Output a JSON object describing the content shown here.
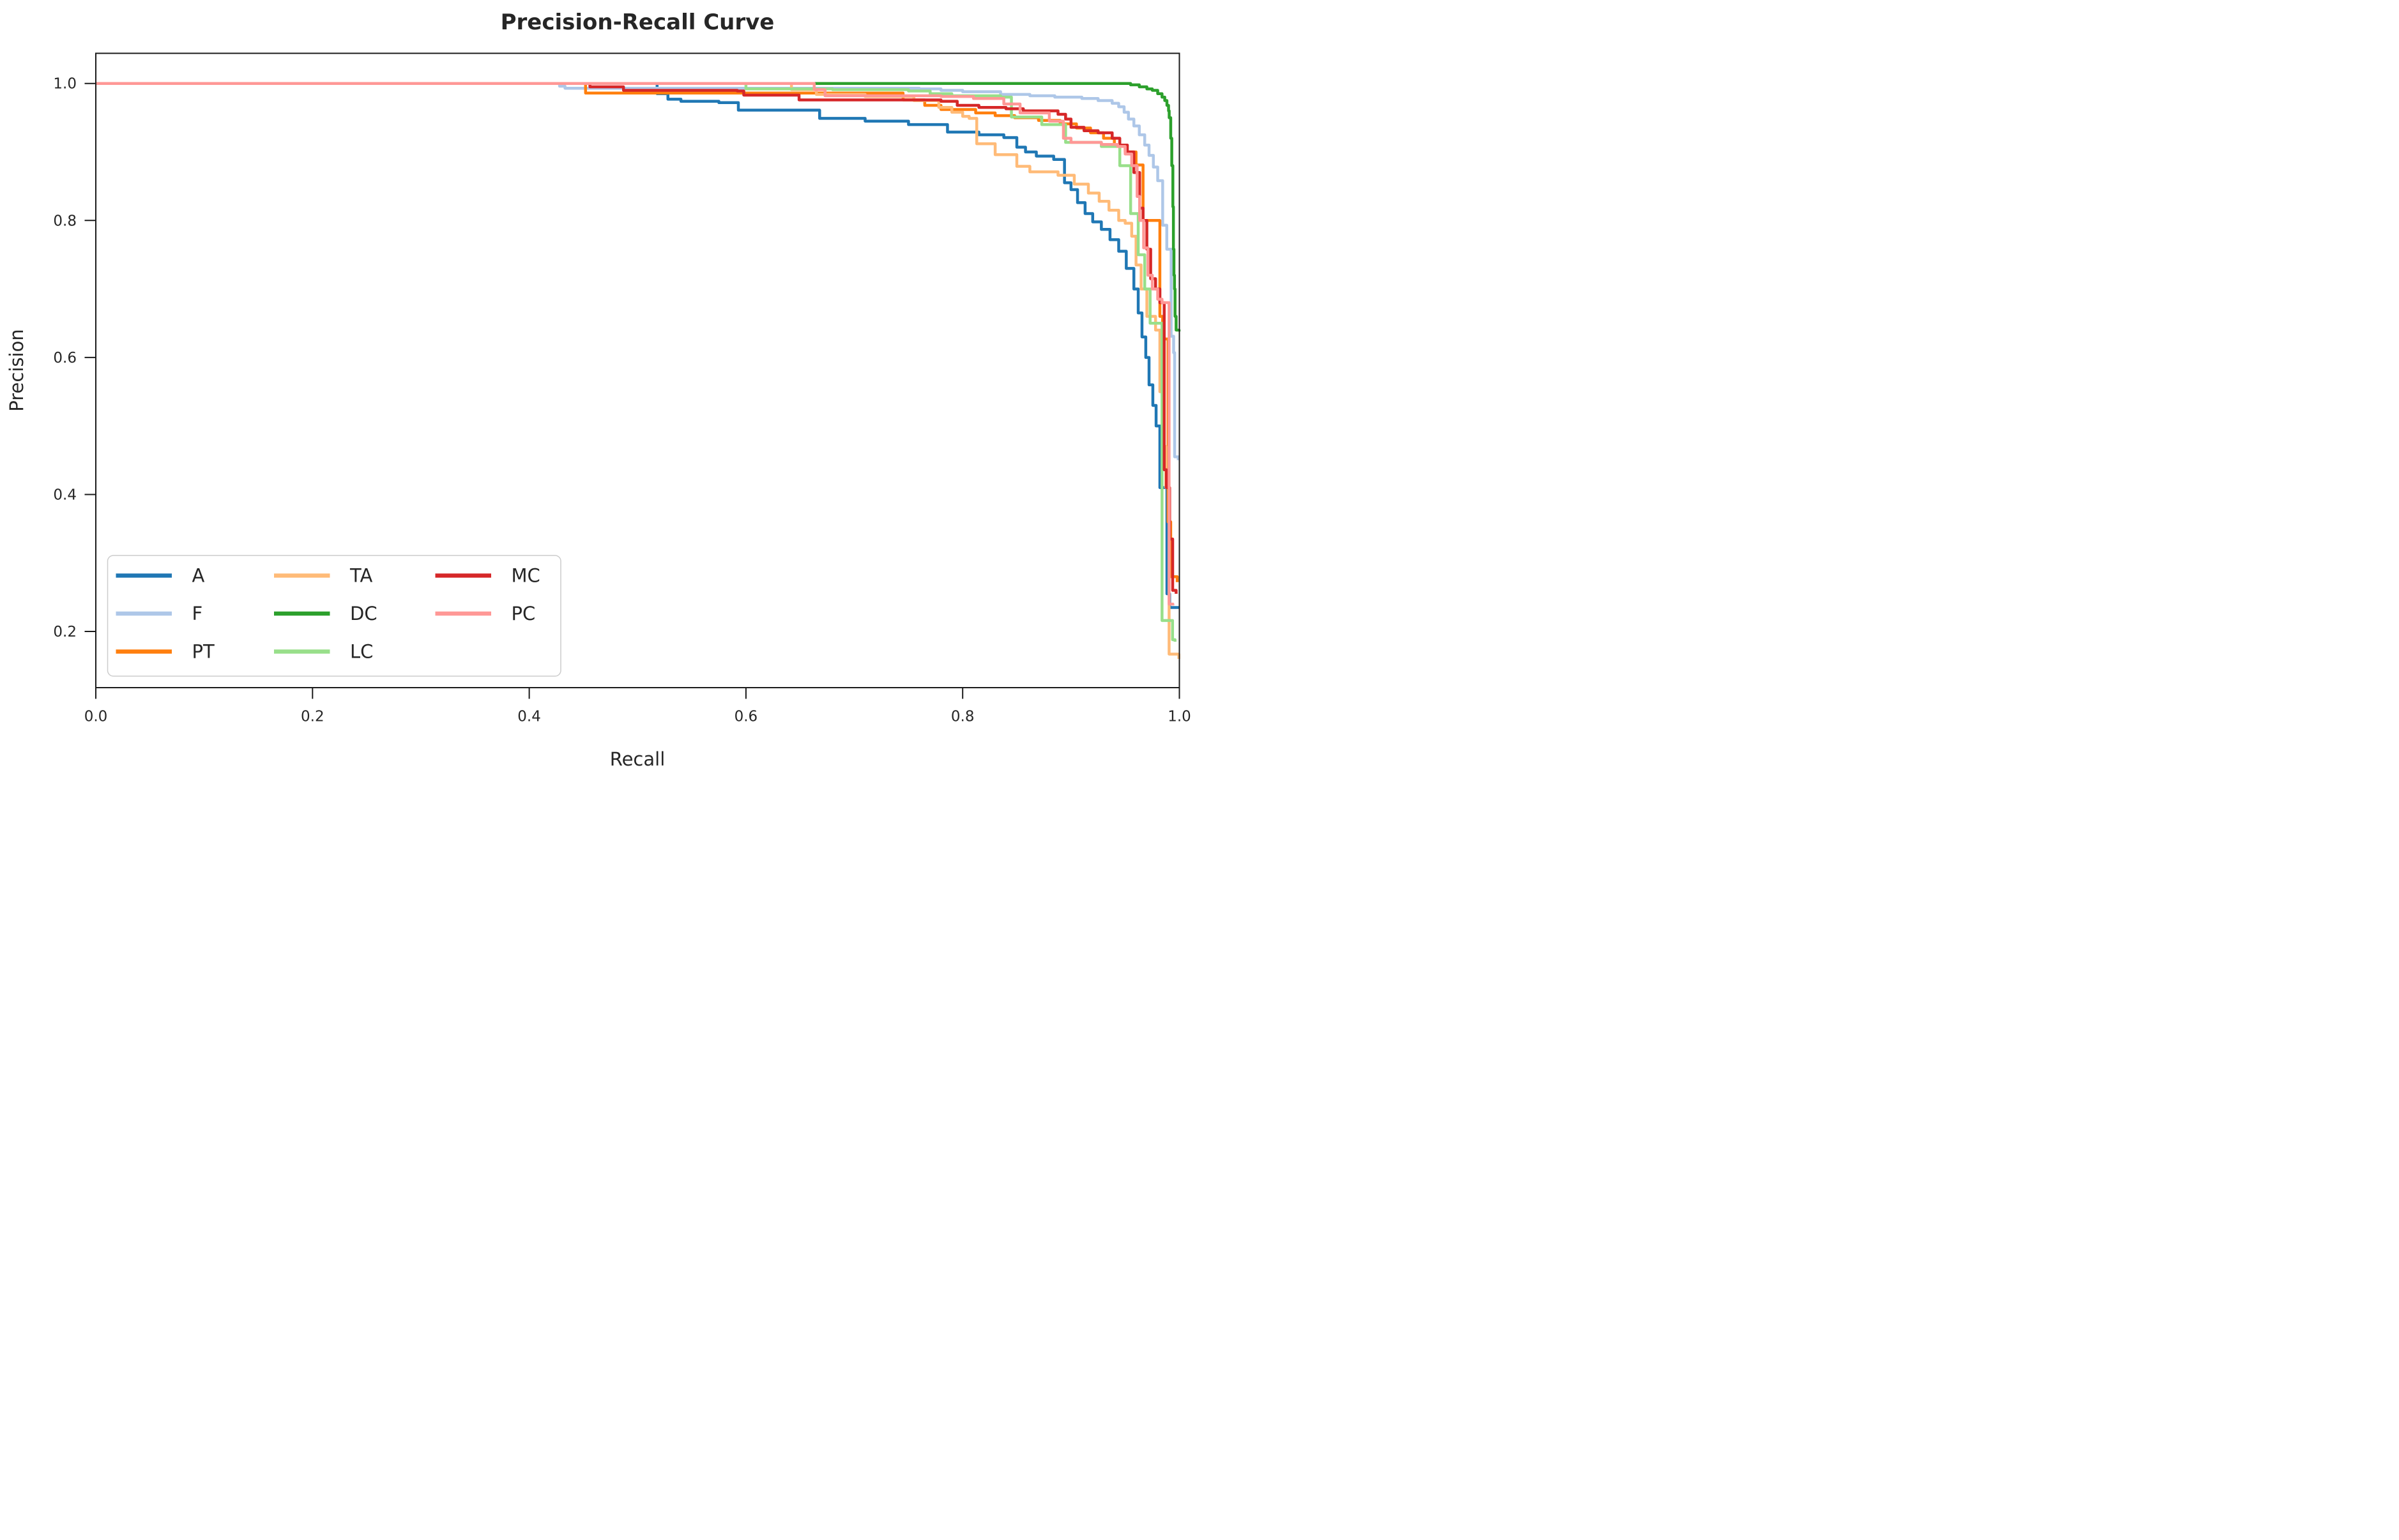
{
  "chart_data": {
    "type": "line",
    "line_style": "step-after",
    "title": "Precision-Recall Curve",
    "xlabel": "Recall",
    "ylabel": "Precision",
    "xlim": [
      0.0,
      1.0
    ],
    "ylim_display": [
      0.118,
      1.044
    ],
    "x_ticks": [
      0.0,
      0.2,
      0.4,
      0.6,
      0.8,
      1.0
    ],
    "y_ticks": [
      0.2,
      0.4,
      0.6,
      0.8,
      1.0
    ],
    "grid": false,
    "legend_position": "lower-left",
    "legend_columns": 3,
    "style": {
      "background": "#ffffff",
      "spine_color": "#1b1b1b",
      "text_color": "#262626",
      "legend_border": "#cccccc",
      "legend_background": "#ffffff"
    },
    "series": [
      {
        "name": "A",
        "color": "#1f77b4",
        "points": [
          [
            0,
            1
          ],
          [
            0.513,
            1
          ],
          [
            0.518,
            0.985
          ],
          [
            0.528,
            0.977
          ],
          [
            0.54,
            0.974
          ],
          [
            0.575,
            0.972
          ],
          [
            0.593,
            0.961
          ],
          [
            0.668,
            0.949
          ],
          [
            0.71,
            0.945
          ],
          [
            0.75,
            0.94
          ],
          [
            0.786,
            0.929
          ],
          [
            0.815,
            0.925
          ],
          [
            0.838,
            0.921
          ],
          [
            0.85,
            0.907
          ],
          [
            0.858,
            0.9
          ],
          [
            0.868,
            0.894
          ],
          [
            0.884,
            0.889
          ],
          [
            0.894,
            0.855
          ],
          [
            0.9,
            0.845
          ],
          [
            0.906,
            0.826
          ],
          [
            0.913,
            0.81
          ],
          [
            0.92,
            0.798
          ],
          [
            0.928,
            0.787
          ],
          [
            0.936,
            0.772
          ],
          [
            0.944,
            0.755
          ],
          [
            0.951,
            0.73
          ],
          [
            0.958,
            0.7
          ],
          [
            0.962,
            0.665
          ],
          [
            0.9655,
            0.63
          ],
          [
            0.969,
            0.6
          ],
          [
            0.972,
            0.56
          ],
          [
            0.9755,
            0.53
          ],
          [
            0.9785,
            0.5
          ],
          [
            0.982,
            0.41
          ],
          [
            0.9885,
            0.255
          ],
          [
            0.991,
            0.235
          ],
          [
            0.9995,
            0.235
          ]
        ]
      },
      {
        "name": "F",
        "color": "#aec7e8",
        "points": [
          [
            0,
            1
          ],
          [
            0.423,
            1
          ],
          [
            0.428,
            0.996
          ],
          [
            0.433,
            0.993
          ],
          [
            0.62,
            0.993
          ],
          [
            0.76,
            0.992
          ],
          [
            0.78,
            0.99
          ],
          [
            0.8,
            0.988
          ],
          [
            0.835,
            0.984
          ],
          [
            0.862,
            0.982
          ],
          [
            0.885,
            0.98
          ],
          [
            0.91,
            0.978
          ],
          [
            0.925,
            0.975
          ],
          [
            0.938,
            0.971
          ],
          [
            0.944,
            0.966
          ],
          [
            0.949,
            0.958
          ],
          [
            0.953,
            0.948
          ],
          [
            0.958,
            0.938
          ],
          [
            0.963,
            0.925
          ],
          [
            0.968,
            0.91
          ],
          [
            0.972,
            0.895
          ],
          [
            0.976,
            0.878
          ],
          [
            0.98,
            0.858
          ],
          [
            0.9846,
            0.793
          ],
          [
            0.9884,
            0.758
          ],
          [
            0.9924,
            0.631
          ],
          [
            0.9947,
            0.607
          ],
          [
            0.9956,
            0.455
          ],
          [
            0.999,
            0.45
          ]
        ]
      },
      {
        "name": "PT",
        "color": "#ff7f0e",
        "points": [
          [
            0,
            1
          ],
          [
            0.447,
            1
          ],
          [
            0.452,
            0.986
          ],
          [
            0.71,
            0.986
          ],
          [
            0.745,
            0.976
          ],
          [
            0.765,
            0.968
          ],
          [
            0.78,
            0.962
          ],
          [
            0.812,
            0.957
          ],
          [
            0.83,
            0.953
          ],
          [
            0.848,
            0.95
          ],
          [
            0.87,
            0.946
          ],
          [
            0.89,
            0.941
          ],
          [
            0.905,
            0.935
          ],
          [
            0.918,
            0.928
          ],
          [
            0.93,
            0.92
          ],
          [
            0.94,
            0.91
          ],
          [
            0.95,
            0.9
          ],
          [
            0.96,
            0.881
          ],
          [
            0.9665,
            0.8
          ],
          [
            0.982,
            0.66
          ],
          [
            0.9845,
            0.627
          ],
          [
            0.9895,
            0.36
          ],
          [
            0.992,
            0.28
          ],
          [
            0.998,
            0.272
          ]
        ]
      },
      {
        "name": "TA",
        "color": "#ffbb78",
        "points": [
          [
            0,
            1
          ],
          [
            0.6366,
            1
          ],
          [
            0.642,
            0.991
          ],
          [
            0.665,
            0.984
          ],
          [
            0.71,
            0.981
          ],
          [
            0.755,
            0.975
          ],
          [
            0.778,
            0.965
          ],
          [
            0.79,
            0.958
          ],
          [
            0.8,
            0.952
          ],
          [
            0.806,
            0.949
          ],
          [
            0.813,
            0.912
          ],
          [
            0.83,
            0.896
          ],
          [
            0.85,
            0.879
          ],
          [
            0.862,
            0.871
          ],
          [
            0.888,
            0.866
          ],
          [
            0.903,
            0.853
          ],
          [
            0.916,
            0.84
          ],
          [
            0.926,
            0.828
          ],
          [
            0.935,
            0.815
          ],
          [
            0.944,
            0.8
          ],
          [
            0.95,
            0.796
          ],
          [
            0.956,
            0.777
          ],
          [
            0.96,
            0.735
          ],
          [
            0.9647,
            0.7
          ],
          [
            0.97,
            0.66
          ],
          [
            0.978,
            0.64
          ],
          [
            0.982,
            0.55
          ],
          [
            0.985,
            0.47
          ],
          [
            0.9875,
            0.41
          ],
          [
            0.9905,
            0.167
          ],
          [
            0.9995,
            0.16
          ]
        ]
      },
      {
        "name": "DC",
        "color": "#2ca02c",
        "points": [
          [
            0,
            1
          ],
          [
            0.945,
            1
          ],
          [
            0.955,
            0.998
          ],
          [
            0.963,
            0.995
          ],
          [
            0.97,
            0.992
          ],
          [
            0.975,
            0.99
          ],
          [
            0.98,
            0.985
          ],
          [
            0.984,
            0.98
          ],
          [
            0.9865,
            0.975
          ],
          [
            0.9885,
            0.968
          ],
          [
            0.99,
            0.96
          ],
          [
            0.9906,
            0.95
          ],
          [
            0.992,
            0.92
          ],
          [
            0.993,
            0.88
          ],
          [
            0.994,
            0.82
          ],
          [
            0.9945,
            0.758
          ],
          [
            0.995,
            0.72
          ],
          [
            0.9955,
            0.7
          ],
          [
            0.996,
            0.66
          ],
          [
            0.997,
            0.64
          ],
          [
            0.9997,
            0.638
          ]
        ]
      },
      {
        "name": "LC",
        "color": "#98df8a",
        "points": [
          [
            0,
            1
          ],
          [
            0.595,
            1
          ],
          [
            0.6,
            0.992
          ],
          [
            0.68,
            0.991
          ],
          [
            0.75,
            0.989
          ],
          [
            0.77,
            0.985
          ],
          [
            0.79,
            0.982
          ],
          [
            0.835,
            0.98
          ],
          [
            0.845,
            0.951
          ],
          [
            0.873,
            0.94
          ],
          [
            0.895,
            0.914
          ],
          [
            0.928,
            0.908
          ],
          [
            0.945,
            0.88
          ],
          [
            0.955,
            0.81
          ],
          [
            0.962,
            0.75
          ],
          [
            0.968,
            0.7
          ],
          [
            0.973,
            0.65
          ],
          [
            0.984,
            0.216
          ],
          [
            0.9937,
            0.188
          ],
          [
            0.996,
            0.185
          ]
        ]
      },
      {
        "name": "MC",
        "color": "#d62728",
        "points": [
          [
            0,
            1
          ],
          [
            0.45,
            1
          ],
          [
            0.456,
            0.995
          ],
          [
            0.487,
            0.99
          ],
          [
            0.592,
            0.989
          ],
          [
            0.598,
            0.983
          ],
          [
            0.649,
            0.976
          ],
          [
            0.78,
            0.974
          ],
          [
            0.795,
            0.968
          ],
          [
            0.815,
            0.965
          ],
          [
            0.84,
            0.963
          ],
          [
            0.856,
            0.96
          ],
          [
            0.888,
            0.955
          ],
          [
            0.895,
            0.948
          ],
          [
            0.9,
            0.936
          ],
          [
            0.912,
            0.931
          ],
          [
            0.925,
            0.928
          ],
          [
            0.938,
            0.92
          ],
          [
            0.945,
            0.91
          ],
          [
            0.952,
            0.9
          ],
          [
            0.958,
            0.87
          ],
          [
            0.9633,
            0.818
          ],
          [
            0.9665,
            0.8
          ],
          [
            0.97,
            0.758
          ],
          [
            0.9735,
            0.715
          ],
          [
            0.978,
            0.7
          ],
          [
            0.982,
            0.68
          ],
          [
            0.986,
            0.436
          ],
          [
            0.988,
            0.41
          ],
          [
            0.991,
            0.335
          ],
          [
            0.9938,
            0.26
          ],
          [
            0.997,
            0.255
          ]
        ]
      },
      {
        "name": "PC",
        "color": "#ff9896",
        "points": [
          [
            0,
            1
          ],
          [
            0.658,
            1
          ],
          [
            0.663,
            0.991
          ],
          [
            0.673,
            0.982
          ],
          [
            0.78,
            0.981
          ],
          [
            0.81,
            0.978
          ],
          [
            0.838,
            0.97
          ],
          [
            0.853,
            0.957
          ],
          [
            0.88,
            0.945
          ],
          [
            0.893,
            0.92
          ],
          [
            0.9,
            0.914
          ],
          [
            0.928,
            0.911
          ],
          [
            0.943,
            0.908
          ],
          [
            0.95,
            0.897
          ],
          [
            0.956,
            0.88
          ],
          [
            0.961,
            0.835
          ],
          [
            0.9633,
            0.8
          ],
          [
            0.967,
            0.76
          ],
          [
            0.971,
            0.72
          ],
          [
            0.975,
            0.7
          ],
          [
            0.98,
            0.685
          ],
          [
            0.984,
            0.68
          ],
          [
            0.9905,
            0.24
          ],
          [
            0.994,
            0.238
          ]
        ]
      }
    ]
  }
}
